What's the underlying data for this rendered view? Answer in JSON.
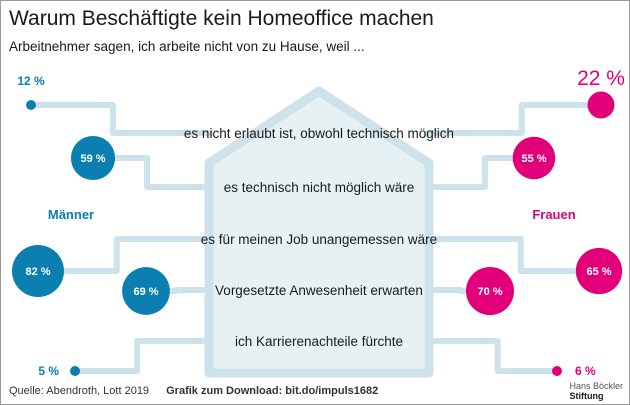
{
  "chart_data": {
    "type": "bubble-comparison",
    "title": "Warum Beschäftigte kein Homeoffice machen",
    "subtitle": "Arbeitnehmer sagen, ich arbeite nicht von zu Hause, weil ...",
    "categories": [
      "es nicht erlaubt ist, obwohl technisch möglich",
      "es technisch nicht möglich wäre",
      "es für meinen Job unangemessen wäre",
      "Vorgesetzte Anwesenheit erwarten",
      "ich Karrierenachteile fürchte"
    ],
    "series": [
      {
        "name": "Männer",
        "values": [
          12,
          59,
          82,
          69,
          5
        ],
        "labels": [
          "12 %",
          "59 %",
          "82 %",
          "69 %",
          "5 %"
        ],
        "color": "#0a7fb0"
      },
      {
        "name": "Frauen",
        "values": [
          22,
          55,
          65,
          70,
          6
        ],
        "labels": [
          "22 %",
          "55 %",
          "65 %",
          "70 %",
          "6 %"
        ],
        "color": "#e2007a"
      }
    ],
    "highlight_color": "#e2007a",
    "house_color": "#e6f1f4",
    "line_color": "#cde2ea"
  },
  "footer": {
    "source": "Quelle: Abendroth, Lott 2019",
    "download": "Grafik zum Download: bit.do/impuls1682"
  },
  "logo": {
    "line1": "Hans Böckler",
    "line2": "Stiftung"
  }
}
